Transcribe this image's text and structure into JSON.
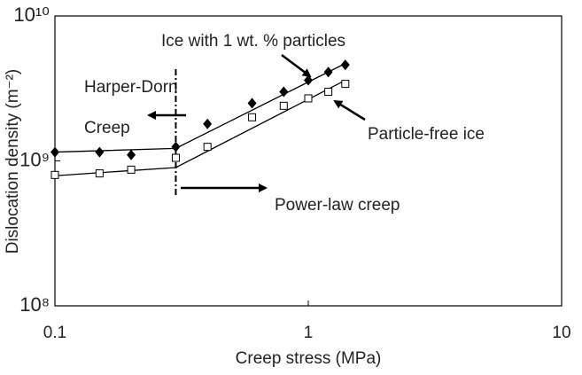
{
  "chart_data": {
    "type": "scatter",
    "xlabel": "Creep stress (MPa)",
    "ylabel": "Dislocation density (m⁻²)",
    "xscale": "log",
    "yscale": "log",
    "xlim": [
      0.1,
      10
    ],
    "ylim": [
      100000000,
      10000000000
    ],
    "xticks": [
      0.1,
      1,
      10
    ],
    "yticks": [
      {
        "value": 100000000,
        "label": "10⁸"
      },
      {
        "value": 1000000000,
        "label": "10⁹"
      },
      {
        "value": 10000000000,
        "label": "10¹⁰"
      }
    ],
    "divider": 0.3,
    "series": [
      {
        "marker": "diamond",
        "color": "#000000",
        "x": [
          0.1,
          0.15,
          0.2,
          0.3,
          0.4,
          0.6,
          0.8,
          1,
          1.2,
          1.4
        ],
        "values": [
          1150000000,
          1150000000,
          1100000000,
          1250000000,
          1800000000,
          2500000000,
          3000000000,
          3600000000,
          4100000000,
          4600000000
        ],
        "fit": {
          "x": [
            0.1,
            0.3,
            1.4
          ],
          "values": [
            1150000000,
            1220000000,
            4700000000
          ]
        }
      },
      {
        "marker": "square",
        "color": "#000000",
        "x": [
          0.1,
          0.15,
          0.2,
          0.3,
          0.4,
          0.6,
          0.8,
          1,
          1.2,
          1.4
        ],
        "values": [
          800000000,
          820000000,
          870000000,
          1050000000,
          1250000000,
          2000000000,
          2400000000,
          2700000000,
          3000000000,
          3400000000
        ],
        "fit": {
          "x": [
            0.1,
            0.3,
            1.4
          ],
          "values": [
            790000000,
            900000000,
            3600000000
          ]
        }
      }
    ],
    "annotations": [
      "Ice with 1 wt. % particles",
      "Harper-Dorn",
      "Creep",
      "Particle-free ice",
      "Power-law creep"
    ]
  }
}
